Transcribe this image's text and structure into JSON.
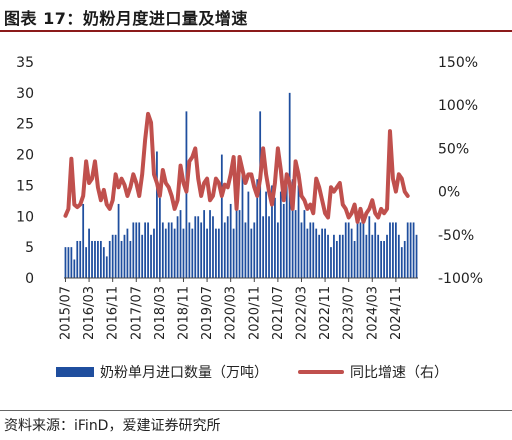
{
  "figure_title": "图表 17：奶粉月度进口量及增速",
  "source": "资料来源：iFinD，爱建证券研究所",
  "colors": {
    "bar": "#1f4e9e",
    "line": "#c0504d",
    "title_rule": "#8b1a1a"
  },
  "chart_data": {
    "type": "bar",
    "title": "",
    "x_tick_labels": [
      "2015/07",
      "2016/03",
      "2016/11",
      "2017/07",
      "2018/03",
      "2018/11",
      "2019/07",
      "2020/03",
      "2020/11",
      "2021/07",
      "2022/03",
      "2022/11",
      "2023/07",
      "2024/03",
      "2024/11"
    ],
    "x_tick_every": 8,
    "legend_position": "bottom",
    "y_left": {
      "min": 0,
      "max": 35,
      "step": 5,
      "tick_labels": [
        "0",
        "5",
        "10",
        "15",
        "20",
        "25",
        "30",
        "35"
      ]
    },
    "y_right": {
      "min": -100,
      "max": 150,
      "step": 50,
      "tick_labels": [
        "-100%",
        "-50%",
        "0%",
        "50%",
        "100%",
        "150%"
      ]
    },
    "series": [
      {
        "name": "奶粉单月进口数量（万吨）",
        "type": "bar",
        "axis": "left",
        "values": [
          5,
          5,
          5,
          3,
          6,
          6,
          12,
          5,
          8,
          6,
          6,
          6,
          6,
          5,
          3.5,
          6,
          7,
          7,
          12,
          6,
          7,
          8,
          6,
          9,
          9,
          9,
          7,
          9,
          9,
          7,
          8,
          20.5,
          13,
          9,
          8,
          9,
          9,
          8,
          10,
          11,
          8,
          27,
          9,
          8,
          10,
          10,
          9,
          11,
          8,
          11,
          10,
          8,
          8,
          20,
          9,
          10,
          12,
          8,
          15,
          11,
          17,
          9,
          14,
          8,
          9,
          16,
          27,
          10,
          14,
          10,
          15,
          13,
          9,
          14,
          12,
          16,
          30,
          16,
          11,
          15,
          9,
          11,
          8,
          9,
          9,
          8,
          7,
          8,
          8,
          7,
          5,
          7,
          6,
          7,
          7,
          9,
          9,
          8,
          6,
          9,
          9,
          9,
          7,
          10,
          7,
          9,
          7,
          6,
          6,
          7,
          9,
          9,
          9,
          7,
          5,
          6,
          9,
          9,
          9,
          7
        ]
      },
      {
        "name": "同比增速（右）",
        "type": "line",
        "axis": "right",
        "values": [
          -28,
          -20,
          38,
          -15,
          -18,
          -15,
          -5,
          35,
          10,
          15,
          35,
          5,
          -10,
          2,
          -15,
          -20,
          -10,
          20,
          5,
          15,
          8,
          -5,
          5,
          20,
          10,
          -5,
          20,
          60,
          90,
          80,
          20,
          10,
          -5,
          25,
          10,
          5,
          -5,
          -20,
          -10,
          30,
          10,
          0,
          35,
          40,
          50,
          15,
          -5,
          10,
          15,
          -10,
          -5,
          15,
          10,
          -5,
          8,
          5,
          20,
          40,
          -20,
          40,
          25,
          10,
          20,
          20,
          5,
          -5,
          15,
          50,
          20,
          0,
          -15,
          10,
          50,
          25,
          -10,
          20,
          10,
          -20,
          35,
          20,
          -5,
          -10,
          -20,
          -15,
          -25,
          15,
          5,
          -10,
          -25,
          -30,
          5,
          0,
          5,
          10,
          -15,
          -20,
          -30,
          -25,
          -15,
          -35,
          -20,
          -35,
          -25,
          -20,
          -10,
          -25,
          -30,
          -20,
          -25,
          -20,
          70,
          15,
          0,
          20,
          15,
          0,
          -5
        ]
      }
    ]
  }
}
